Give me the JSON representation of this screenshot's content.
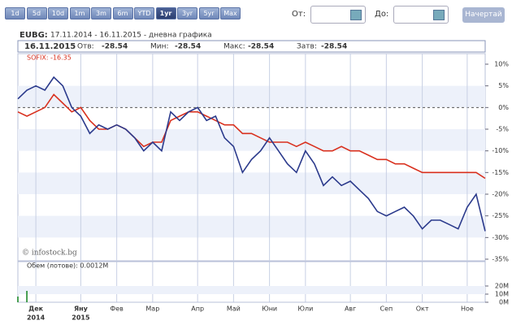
{
  "toolbar": {
    "periods": [
      "1d",
      "5d",
      "10d",
      "1m",
      "3m",
      "6m",
      "YTD",
      "1yr",
      "3yr",
      "5yr",
      "Max"
    ],
    "active": 7,
    "from_label": "От:",
    "to_label": "До:",
    "submit": "Начертай"
  },
  "chart_data": {
    "type": "line",
    "symbol": "EUBG:",
    "title": "17.11.2014 - 16.11.2015 - дневна графика",
    "info": {
      "date": "16.11.2015",
      "items": [
        {
          "label": "Отв:",
          "value": -28.54
        },
        {
          "label": "Мин:",
          "value": -28.54
        },
        {
          "label": "Макс:",
          "value": -28.54
        },
        {
          "label": "Затв:",
          "value": -28.54
        }
      ]
    },
    "categories": [
      null,
      null,
      "Дек",
      null,
      null,
      null,
      null,
      "Яну",
      null,
      null,
      null,
      "Фев",
      null,
      null,
      null,
      "Мар",
      null,
      null,
      null,
      null,
      "Апр",
      null,
      null,
      null,
      "Май",
      null,
      null,
      null,
      "Юни",
      null,
      null,
      null,
      "Юли",
      null,
      null,
      null,
      null,
      "Авг",
      null,
      null,
      null,
      "Сеп",
      null,
      null,
      null,
      "Окт",
      null,
      null,
      null,
      null,
      "Ное",
      null,
      null
    ],
    "year_labels": [
      "2014",
      "2015"
    ],
    "series": [
      {
        "color": "#2b3a8c",
        "values": [
          2,
          4,
          5,
          4,
          7,
          5,
          0,
          -2,
          -6,
          -4,
          -5,
          -4,
          -5,
          -7,
          -10,
          -8,
          -10,
          -1,
          -3,
          -1,
          0,
          -3,
          -2,
          -7,
          -9,
          -15,
          -12,
          -10,
          -7,
          -10,
          -13,
          -15,
          -10,
          -13,
          -18,
          -16,
          -18,
          -17,
          -19,
          -21,
          -24,
          -25,
          -24,
          -23,
          -25,
          -28,
          -26,
          -26,
          -27,
          -28,
          -23,
          -20,
          -28.54
        ]
      },
      {
        "name": "SOFIX: -16.35",
        "color": "#d9301e",
        "values": [
          -1,
          -2,
          -1,
          0,
          3,
          1,
          -1,
          0,
          -3,
          -5,
          -5,
          -4,
          -5,
          -7,
          -9,
          -8,
          -8,
          -3,
          -2,
          -1,
          -1,
          -2,
          -3,
          -4,
          -4,
          -6,
          -6,
          -7,
          -8,
          -8,
          -8,
          -9,
          -8,
          -9,
          -10,
          -10,
          -9,
          -10,
          -10,
          -11,
          -12,
          -12,
          -13,
          -13,
          -14,
          -15,
          -15,
          -15,
          -15,
          -15,
          -15,
          -15,
          -16.35
        ]
      }
    ],
    "ylim": [
      -35,
      10
    ],
    "yticks": [
      {
        "value": 10,
        "label": "10%"
      },
      {
        "value": 5,
        "label": "5%"
      },
      {
        "value": 0,
        "label": "0%"
      },
      {
        "value": -5,
        "label": "-5%"
      },
      {
        "value": -10,
        "label": "-10%"
      },
      {
        "value": -15,
        "label": "-15%"
      },
      {
        "value": -20,
        "label": "-20%"
      },
      {
        "value": -25,
        "label": "-25%"
      },
      {
        "value": -30,
        "label": "-30%"
      },
      {
        "value": -35,
        "label": "-35%"
      }
    ],
    "watermark": "© infostock.bg",
    "volume": {
      "label": "Обем (лотове): 0.0012M",
      "color": "#1e8a2a",
      "values": [
        7,
        14,
        0,
        0,
        0,
        0,
        0,
        0,
        0,
        0,
        0,
        0,
        0,
        0,
        0,
        0,
        0,
        0,
        0,
        0,
        0,
        0,
        0,
        0,
        0,
        0,
        0,
        0,
        0,
        0,
        0,
        0,
        0,
        0,
        0,
        0,
        0,
        0,
        0,
        0,
        0,
        0,
        0,
        0,
        0,
        0,
        0,
        0,
        0,
        0,
        0,
        0,
        0.0012
      ],
      "ylim": [
        0,
        20
      ],
      "yticks": [
        {
          "value": 20,
          "label": "20M"
        },
        {
          "value": 10,
          "label": "10M"
        },
        {
          "value": 0,
          "label": "0M"
        }
      ]
    }
  }
}
